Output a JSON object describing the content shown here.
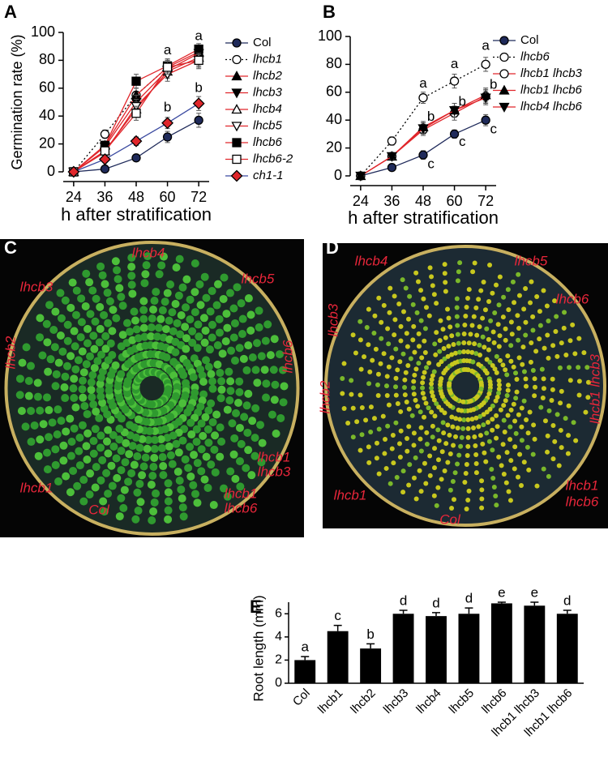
{
  "chart_data": [
    {
      "type": "line",
      "panel_label": "A",
      "ylabel": "Germination rate (%)",
      "xlabel": "h after stratification",
      "x": [
        24,
        36,
        48,
        60,
        72
      ],
      "xticks": [
        24,
        36,
        48,
        60,
        72
      ],
      "xlim": [
        20,
        76
      ],
      "ylim": [
        0,
        100
      ],
      "yticks": [
        0,
        20,
        40,
        60,
        80,
        100
      ],
      "series": [
        {
          "name": "Col",
          "color": "#1f2a5a",
          "marker": "circle",
          "marker_fill": "#1f2a5a",
          "dash": "none",
          "values": [
            0,
            2,
            10,
            25,
            37
          ],
          "errors": [
            0,
            1,
            2,
            4,
            5
          ]
        },
        {
          "name": "lhcb1",
          "color": "#000000",
          "marker": "circle",
          "marker_fill": "#ffffff",
          "dash": "2,3",
          "values": [
            0,
            27,
            55,
            75,
            80
          ],
          "errors": [
            0,
            3,
            5,
            5,
            6
          ]
        },
        {
          "name": "lhcb2",
          "color": "#e0262b",
          "marker": "triangle",
          "marker_fill": "#000000",
          "dash": "none",
          "values": [
            0,
            19,
            55,
            75,
            86
          ],
          "errors": [
            0,
            3,
            5,
            5,
            4
          ]
        },
        {
          "name": "lhcb3",
          "color": "#e0262b",
          "marker": "triangle-down",
          "marker_fill": "#000000",
          "dash": "none",
          "values": [
            0,
            18,
            50,
            73,
            85
          ],
          "errors": [
            0,
            3,
            5,
            5,
            4
          ]
        },
        {
          "name": "lhcb4",
          "color": "#e0262b",
          "marker": "triangle",
          "marker_fill": "#ffffff",
          "dash": "none",
          "values": [
            0,
            15,
            45,
            72,
            82
          ],
          "errors": [
            0,
            3,
            5,
            5,
            4
          ]
        },
        {
          "name": "lhcb5",
          "color": "#e0262b",
          "marker": "triangle-down",
          "marker_fill": "#ffffff",
          "dash": "none",
          "values": [
            0,
            14,
            47,
            70,
            80
          ],
          "errors": [
            0,
            3,
            5,
            5,
            4
          ]
        },
        {
          "name": "lhcb6",
          "color": "#e0262b",
          "marker": "square",
          "marker_fill": "#000000",
          "dash": "none",
          "values": [
            0,
            19,
            65,
            76,
            88
          ],
          "errors": [
            0,
            3,
            5,
            5,
            4
          ]
        },
        {
          "name": "lhcb6-2",
          "color": "#e0262b",
          "marker": "square",
          "marker_fill": "#ffffff",
          "dash": "none",
          "values": [
            0,
            15,
            42,
            75,
            80
          ],
          "errors": [
            0,
            3,
            5,
            5,
            5
          ]
        },
        {
          "name": "ch1-1",
          "color": "#3b4aa0",
          "marker": "diamond",
          "marker_fill": "#e0262b",
          "dash": "none",
          "values": [
            0,
            9,
            22,
            35,
            49
          ],
          "errors": [
            0,
            2,
            3,
            4,
            5
          ]
        }
      ],
      "annotations": [
        {
          "text": "a",
          "x": 60,
          "y": 87
        },
        {
          "text": "b",
          "x": 60,
          "y": 46
        },
        {
          "text": "a",
          "x": 72,
          "y": 97
        },
        {
          "text": "b",
          "x": 72,
          "y": 60
        }
      ]
    },
    {
      "type": "line",
      "panel_label": "B",
      "xlabel": "h after stratification",
      "x": [
        24,
        36,
        48,
        60,
        72
      ],
      "xticks": [
        24,
        36,
        48,
        60,
        72
      ],
      "xlim": [
        20,
        76
      ],
      "ylim": [
        0,
        100
      ],
      "yticks": [
        0,
        20,
        40,
        60,
        80,
        100
      ],
      "series": [
        {
          "name": "Col",
          "color": "#1f2a5a",
          "marker": "circle",
          "marker_fill": "#1f2a5a",
          "dash": "none",
          "values": [
            0,
            6,
            15,
            30,
            40
          ],
          "errors": [
            0,
            2,
            3,
            3,
            4
          ]
        },
        {
          "name": "lhcb6",
          "color": "#000000",
          "marker": "circle",
          "marker_fill": "#ffffff",
          "dash": "2,3",
          "values": [
            0,
            25,
            56,
            68,
            80
          ],
          "errors": [
            0,
            3,
            4,
            5,
            5
          ]
        },
        {
          "name": "lhcb1 lhcb3",
          "color": "#e0262b",
          "marker": "circle",
          "marker_fill": "#ffffff",
          "dash": "none",
          "values": [
            0,
            14,
            33,
            45,
            57
          ],
          "errors": [
            0,
            2,
            4,
            5,
            5
          ]
        },
        {
          "name": "lhcb1 lhcb6",
          "color": "#e0262b",
          "marker": "triangle",
          "marker_fill": "#000000",
          "dash": "none",
          "values": [
            0,
            14,
            35,
            47,
            58
          ],
          "errors": [
            0,
            2,
            4,
            5,
            5
          ]
        },
        {
          "name": "lhcb4 lhcb6",
          "color": "#e0262b",
          "marker": "triangle-down",
          "marker_fill": "#000000",
          "dash": "none",
          "values": [
            0,
            14,
            34,
            47,
            56
          ],
          "errors": [
            0,
            2,
            4,
            5,
            5
          ]
        }
      ],
      "annotations": [
        {
          "text": "a",
          "x": 48,
          "y": 66
        },
        {
          "text": "b",
          "x": 51,
          "y": 42
        },
        {
          "text": "c",
          "x": 51,
          "y": 8
        },
        {
          "text": "a",
          "x": 60,
          "y": 80
        },
        {
          "text": "b",
          "x": 63,
          "y": 53
        },
        {
          "text": "c",
          "x": 63,
          "y": 24
        },
        {
          "text": "a",
          "x": 72,
          "y": 93
        },
        {
          "text": "b",
          "x": 75,
          "y": 65
        },
        {
          "text": "c",
          "x": 75,
          "y": 33
        }
      ]
    },
    {
      "type": "bar",
      "panel_label": "E",
      "ylabel": "Root length (mm)",
      "color": "#000000",
      "categories": [
        "Col",
        "lhcb1",
        "lhcb2",
        "lhcb3",
        "lhcb4",
        "lhcb5",
        "lhcb6",
        "lhcb1 lhcb3",
        "lhcb1 lhcb6"
      ],
      "values": [
        2.0,
        4.5,
        3.0,
        6.0,
        5.8,
        6.0,
        6.9,
        6.7,
        6.0
      ],
      "errors": [
        0.3,
        0.5,
        0.4,
        0.3,
        0.3,
        0.5,
        0.1,
        0.3,
        0.3
      ],
      "letters": [
        "a",
        "c",
        "b",
        "d",
        "d",
        "d",
        "e",
        "e",
        "d"
      ],
      "ylim": [
        0,
        7
      ],
      "yticks": [
        0,
        2,
        4,
        6
      ]
    }
  ],
  "photos": [
    {
      "panel_label": "C",
      "style": "green",
      "labels": [
        "lhcb4",
        "lhcb3",
        "lhcb5",
        "lhcb2",
        "lhcb6",
        "lhcb1",
        "lhcb3",
        "lhcb1",
        "Col",
        "lhcb1",
        "lhcb6"
      ]
    },
    {
      "panel_label": "D",
      "style": "yellow",
      "labels": [
        "lhcb4",
        "lhcb5",
        "lhcb3",
        "lhcb6",
        "lhcb2",
        "lhcb1 lhcb3",
        "lhcb1",
        "lhcb1",
        "lhcb6",
        "Col"
      ]
    }
  ]
}
